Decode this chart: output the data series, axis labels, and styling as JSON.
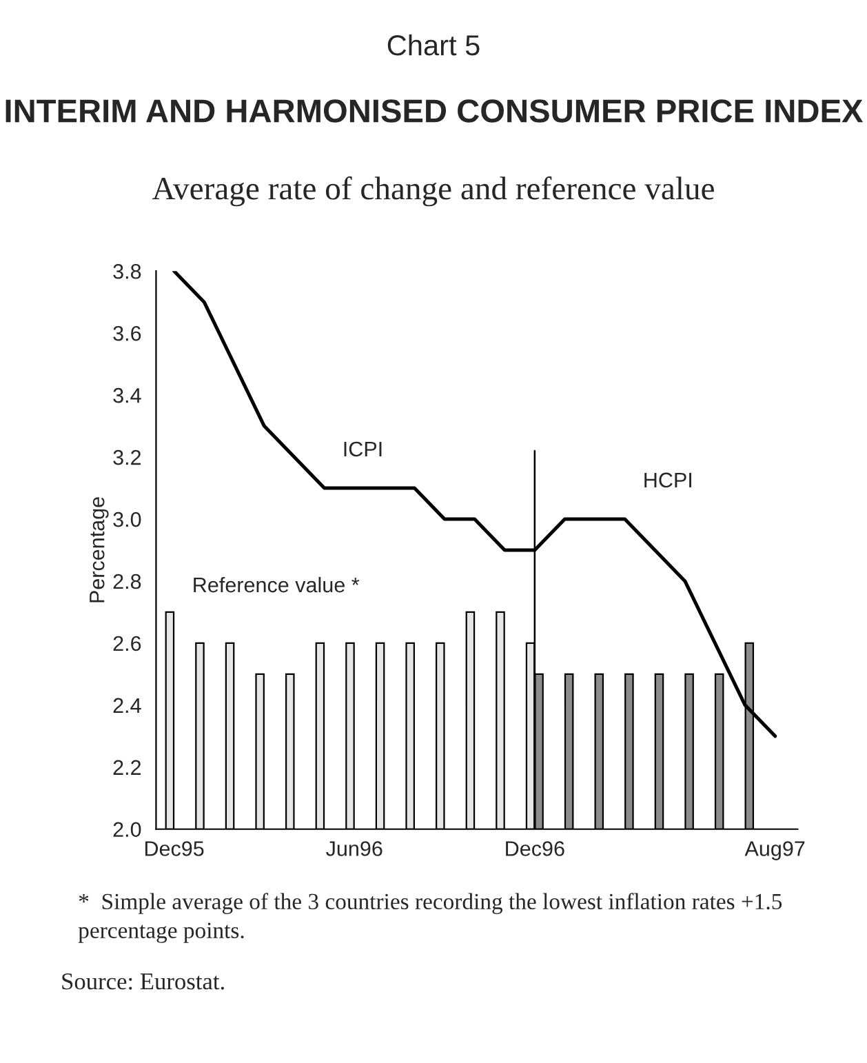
{
  "chart_data": {
    "type": "bar",
    "title": "INTERIM AND HARMONISED CONSUMER PRICE INDEX",
    "subtitle": "Average rate of change and reference value",
    "ylabel": "Percentage",
    "categories": [
      "Dec95",
      null,
      null,
      null,
      null,
      null,
      "Jun96",
      null,
      null,
      null,
      null,
      null,
      "Dec96",
      null,
      null,
      null,
      null,
      null,
      null,
      null,
      "Aug97"
    ],
    "series": [
      {
        "name": "Reference value *",
        "color": "#e6e6e6",
        "values": [
          2.7,
          2.6,
          2.6,
          2.5,
          2.5,
          2.6,
          2.6,
          2.6,
          2.6,
          2.6,
          2.7,
          2.7,
          2.6,
          null,
          null,
          null,
          null,
          null,
          null,
          null,
          null
        ]
      },
      {
        "color": "#8c8c8c",
        "values": [
          null,
          null,
          null,
          null,
          null,
          null,
          null,
          null,
          null,
          null,
          null,
          null,
          2.5,
          2.5,
          2.5,
          2.5,
          2.5,
          2.5,
          2.5,
          2.6,
          null
        ]
      },
      {
        "name": "ICPI",
        "type": "line",
        "color": "#000000",
        "values": [
          3.8,
          3.7,
          3.5,
          3.3,
          3.2,
          3.1,
          3.1,
          3.1,
          3.1,
          3.0,
          3.0,
          2.9,
          2.9,
          null,
          null,
          null,
          null,
          null,
          null,
          null,
          null
        ]
      },
      {
        "name": "HCPI",
        "type": "line",
        "color": "#000000",
        "values": [
          null,
          null,
          null,
          null,
          null,
          null,
          null,
          null,
          null,
          null,
          null,
          null,
          2.9,
          3.0,
          3.0,
          3.0,
          2.9,
          2.8,
          2.6,
          2.4,
          2.3
        ]
      }
    ],
    "ylim": [
      2.0,
      3.8
    ],
    "yticks": [
      {
        "value": 2.0,
        "label": "2.0"
      },
      2.2,
      2.4,
      2.6,
      2.8,
      {
        "value": 3.0,
        "label": "3.0"
      },
      3.2,
      3.4,
      3.6,
      3.8
    ],
    "ref_lines": [
      {
        "axis": "x",
        "value": "Dec96",
        "color": "#000000"
      }
    ],
    "annotations": [
      "Chart 5",
      "*  Simple average of the 3 countries recording the lowest inflation rates +1.5 percentage points.",
      "Source: Eurostat."
    ],
    "grid": false,
    "legend": false,
    "marker": "none",
    "line_style": "solid"
  }
}
